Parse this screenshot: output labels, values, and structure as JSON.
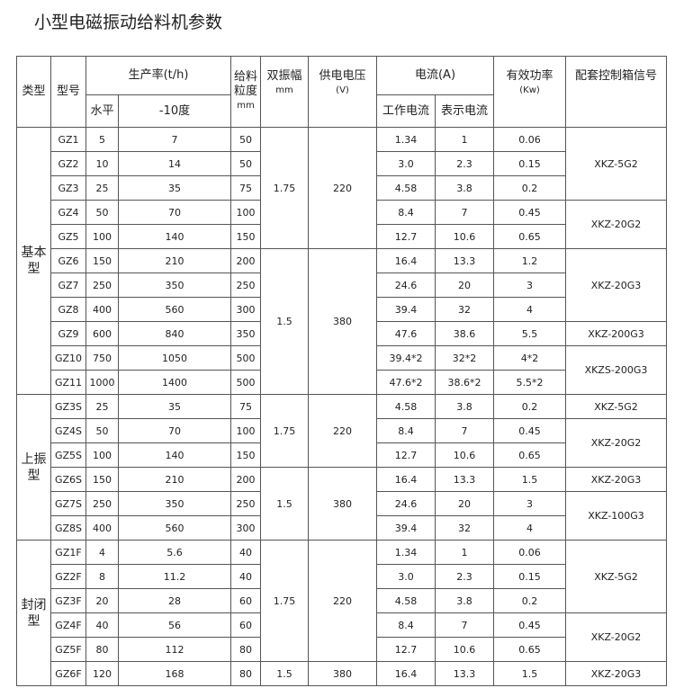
{
  "title": "小型电磁振动给料机参数",
  "table": {
    "header": {
      "type": "类型",
      "model": "型号",
      "output": "生产率(t/h)",
      "output_level": "水平",
      "output_decline": "-10度",
      "grain": "给料粒度",
      "grain_unit": "mm",
      "amplitude": "双振幅",
      "amplitude_unit": "mm",
      "voltage": "供电电压",
      "voltage_unit": "(V)",
      "current": "电流(A)",
      "current_work": "工作电流",
      "current_display": "表示电流",
      "power": "有效功率",
      "power_unit": "(Kw)",
      "controller": "配套控制箱信号"
    },
    "groups": [
      {
        "type": "基本型",
        "blocks": [
          {
            "amplitude": "1.75",
            "voltage": "220",
            "sets": [
              {
                "controller": "XKZ-5G2",
                "rows": [
                  [
                    "GZ1",
                    "5",
                    "7",
                    "50",
                    "1.34",
                    "1",
                    "0.06"
                  ],
                  [
                    "GZ2",
                    "10",
                    "14",
                    "50",
                    "3.0",
                    "2.3",
                    "0.15"
                  ],
                  [
                    "GZ3",
                    "25",
                    "35",
                    "75",
                    "4.58",
                    "3.8",
                    "0.2"
                  ]
                ]
              },
              {
                "controller": "XKZ-20G2",
                "rows": [
                  [
                    "GZ4",
                    "50",
                    "70",
                    "100",
                    "8.4",
                    "7",
                    "0.45"
                  ],
                  [
                    "GZ5",
                    "100",
                    "140",
                    "150",
                    "12.7",
                    "10.6",
                    "0.65"
                  ]
                ]
              }
            ]
          },
          {
            "amplitude": "1.5",
            "voltage": "380",
            "sets": [
              {
                "controller": "XKZ-20G3",
                "rows": [
                  [
                    "GZ6",
                    "150",
                    "210",
                    "200",
                    "16.4",
                    "13.3",
                    "1.2"
                  ],
                  [
                    "GZ7",
                    "250",
                    "350",
                    "250",
                    "24.6",
                    "20",
                    "3"
                  ],
                  [
                    "GZ8",
                    "400",
                    "560",
                    "300",
                    "39.4",
                    "32",
                    "4"
                  ]
                ]
              },
              {
                "controller": "XKZ-200G3",
                "rows": [
                  [
                    "GZ9",
                    "600",
                    "840",
                    "350",
                    "47.6",
                    "38.6",
                    "5.5"
                  ]
                ]
              },
              {
                "controller": "XKZS-200G3",
                "rows": [
                  [
                    "GZ10",
                    "750",
                    "1050",
                    "500",
                    "39.4*2",
                    "32*2",
                    "4*2"
                  ],
                  [
                    "GZ11",
                    "1000",
                    "1400",
                    "500",
                    "47.6*2",
                    "38.6*2",
                    "5.5*2"
                  ]
                ]
              }
            ]
          }
        ]
      },
      {
        "type": "上振型",
        "blocks": [
          {
            "amplitude": "1.75",
            "voltage": "220",
            "sets": [
              {
                "controller": "XKZ-5G2",
                "rows": [
                  [
                    "GZ3S",
                    "25",
                    "35",
                    "75",
                    "4.58",
                    "3.8",
                    "0.2"
                  ]
                ]
              },
              {
                "controller": "XKZ-20G2",
                "rows": [
                  [
                    "GZ4S",
                    "50",
                    "70",
                    "100",
                    "8.4",
                    "7",
                    "0.45"
                  ],
                  [
                    "GZ5S",
                    "100",
                    "140",
                    "150",
                    "12.7",
                    "10.6",
                    "0.65"
                  ]
                ]
              }
            ]
          },
          {
            "amplitude": "1.5",
            "voltage": "380",
            "sets": [
              {
                "controller": "XKZ-20G3",
                "rows": [
                  [
                    "GZ6S",
                    "150",
                    "210",
                    "200",
                    "16.4",
                    "13.3",
                    "1.5"
                  ]
                ]
              },
              {
                "controller": "XKZ-100G3",
                "rows": [
                  [
                    "GZ7S",
                    "250",
                    "350",
                    "250",
                    "24.6",
                    "20",
                    "3"
                  ],
                  [
                    "GZ8S",
                    "400",
                    "560",
                    "300",
                    "39.4",
                    "32",
                    "4"
                  ]
                ]
              }
            ]
          }
        ]
      },
      {
        "type": "封闭型",
        "blocks": [
          {
            "amplitude": "1.75",
            "voltage": "220",
            "sets": [
              {
                "controller": "XKZ-5G2",
                "rows": [
                  [
                    "GZ1F",
                    "4",
                    "5.6",
                    "40",
                    "1.34",
                    "1",
                    "0.06"
                  ],
                  [
                    "GZ2F",
                    "8",
                    "11.2",
                    "40",
                    "3.0",
                    "2.3",
                    "0.15"
                  ],
                  [
                    "GZ3F",
                    "20",
                    "28",
                    "60",
                    "4.58",
                    "3.8",
                    "0.2"
                  ]
                ]
              },
              {
                "controller": "XKZ-20G2",
                "rows": [
                  [
                    "GZ4F",
                    "40",
                    "56",
                    "60",
                    "8.4",
                    "7",
                    "0.45"
                  ],
                  [
                    "GZ5F",
                    "80",
                    "112",
                    "80",
                    "12.7",
                    "10.6",
                    "0.65"
                  ]
                ]
              }
            ]
          },
          {
            "amplitude": "1.5",
            "voltage": "380",
            "sets": [
              {
                "controller": "XKZ-20G3",
                "rows": [
                  [
                    "GZ6F",
                    "120",
                    "168",
                    "80",
                    "16.4",
                    "13.3",
                    "1.5"
                  ]
                ]
              }
            ]
          }
        ]
      }
    ]
  }
}
